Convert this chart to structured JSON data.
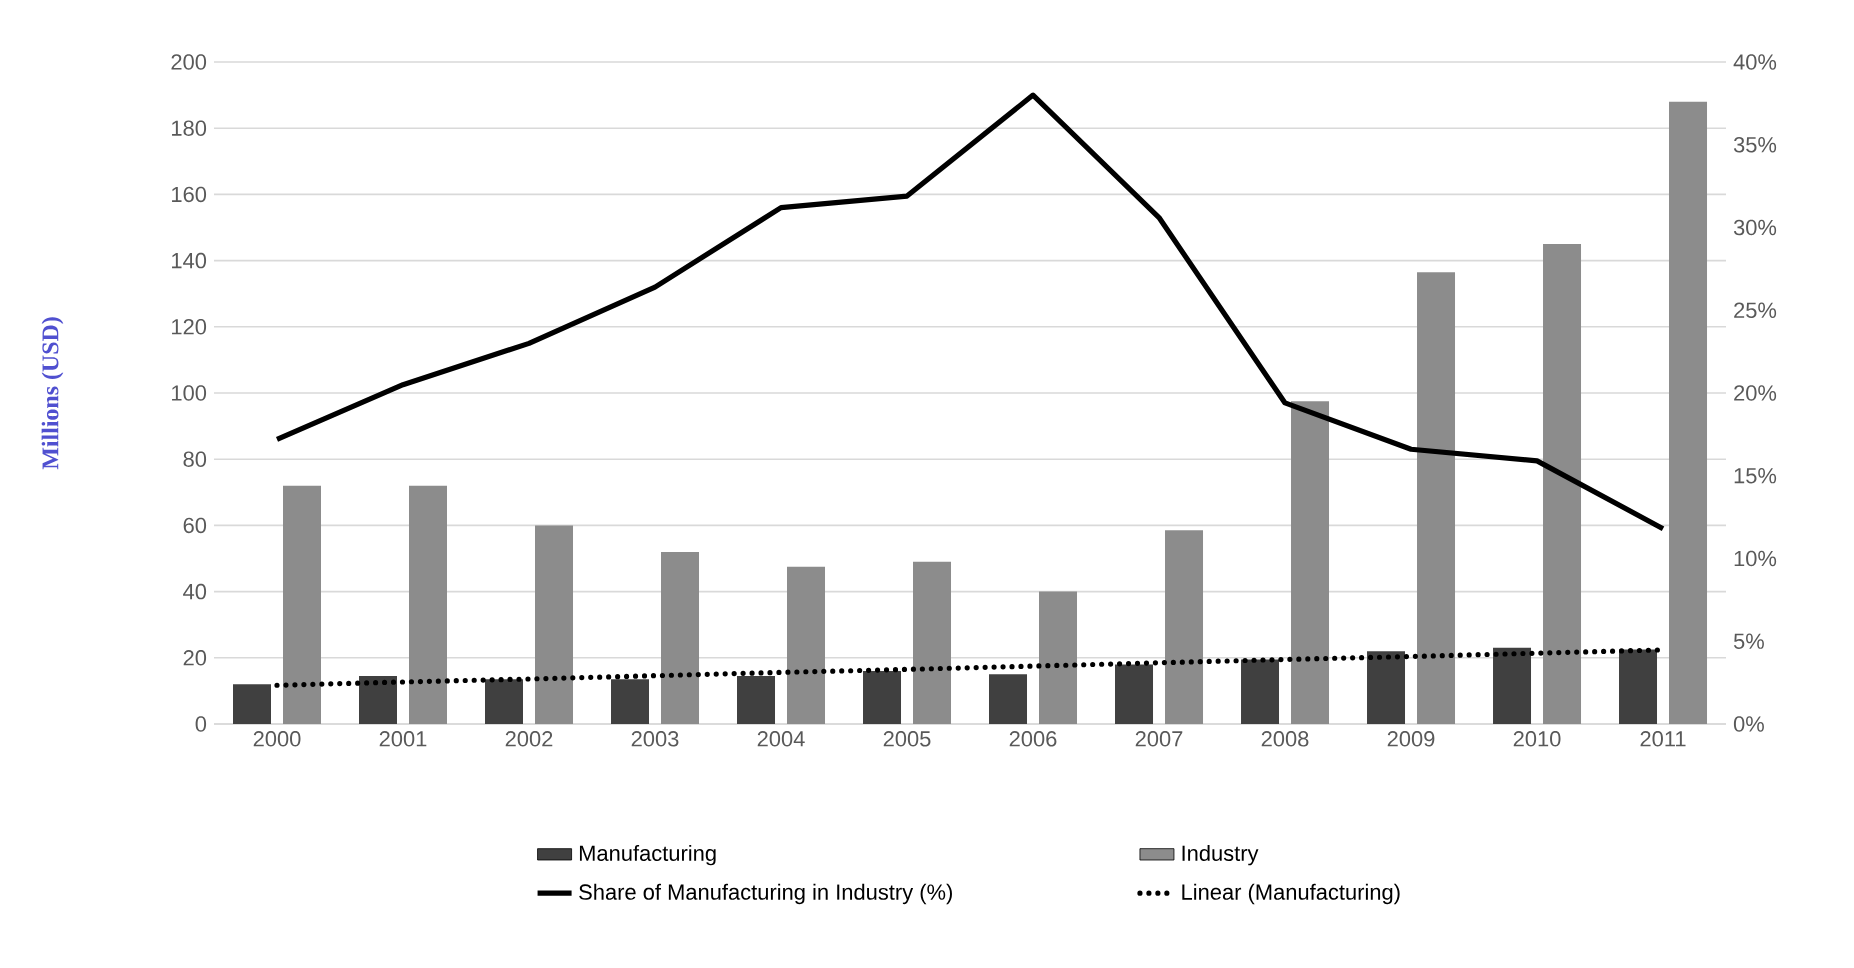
{
  "chart_data": {
    "type": "bar",
    "ylabel": "Millions (USD)",
    "categories": [
      "2000",
      "2001",
      "2002",
      "2003",
      "2004",
      "2005",
      "2006",
      "2007",
      "2008",
      "2009",
      "2010",
      "2011"
    ],
    "series": [
      {
        "name": "Manufacturing",
        "type": "bar",
        "color": "#404040",
        "values": [
          12,
          14.5,
          13.5,
          13.5,
          14.5,
          16,
          15,
          18,
          19.5,
          22,
          23,
          22.5
        ]
      },
      {
        "name": "Industry",
        "type": "bar",
        "color": "#8c8c8c",
        "values": [
          72,
          72,
          60,
          52,
          47.5,
          49,
          40,
          58.5,
          97.5,
          136.5,
          145,
          188
        ]
      },
      {
        "name": "Share of Manufacturing in Industry (%)",
        "type": "line",
        "axis": "y2",
        "color": "#000000",
        "line_style": "solid",
        "values": [
          17.2,
          20.5,
          23,
          26.4,
          31.2,
          31.9,
          38,
          30.6,
          19.4,
          16.6,
          15.9,
          11.8
        ]
      },
      {
        "name": "Linear (Manufacturing)",
        "type": "line",
        "color": "#000000",
        "line_style": "dotted",
        "values": [
          11.7,
          12.7,
          13.6,
          14.6,
          15.6,
          16.5,
          17.5,
          18.5,
          19.5,
          20.4,
          21.4,
          22.4
        ]
      }
    ],
    "ylim": [
      0,
      200
    ],
    "yticks": [
      0,
      20,
      40,
      60,
      80,
      100,
      120,
      140,
      160,
      180,
      200
    ],
    "y2lim": [
      0,
      40
    ],
    "y2ticks": [
      {
        "value": 0,
        "label": "0%"
      },
      {
        "value": 5,
        "label": "5%"
      },
      {
        "value": 10,
        "label": "10%"
      },
      {
        "value": 15,
        "label": "15%"
      },
      {
        "value": 20,
        "label": "20%"
      },
      {
        "value": 25,
        "label": "25%"
      },
      {
        "value": 30,
        "label": "30%"
      },
      {
        "value": 35,
        "label": "35%"
      },
      {
        "value": 40,
        "label": "40%"
      }
    ],
    "grid": "y",
    "legend": "bottom"
  }
}
